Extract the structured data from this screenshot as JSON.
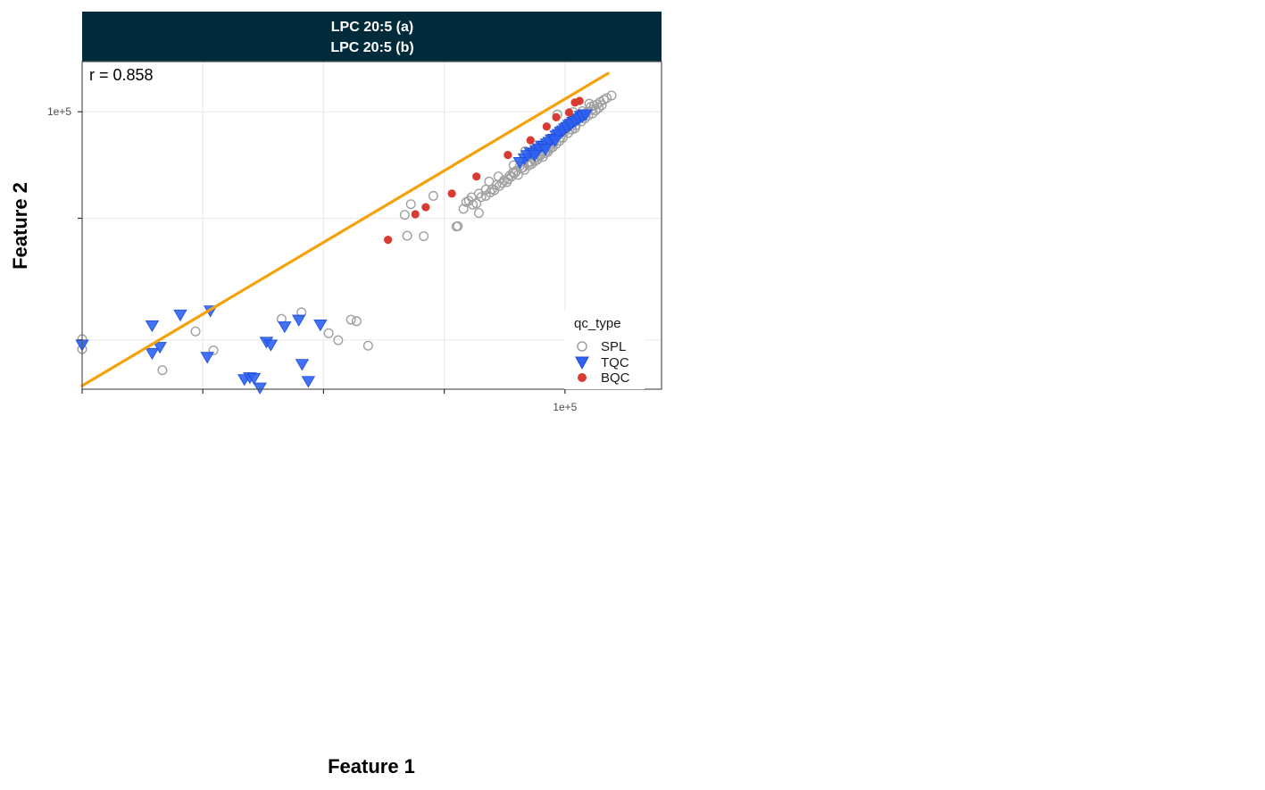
{
  "chart_data": {
    "type": "scatter",
    "panel_title": [
      "LPC 20:5 (a)",
      "LPC 20:5 (b)"
    ],
    "xlabel": "Feature 1",
    "ylabel": "Feature 2",
    "x_scale": "log10",
    "y_scale": "log10",
    "xlim": [
      1000,
      251188
    ],
    "ylim": [
      1500,
      213796
    ],
    "x_ticks": [
      {
        "value": 1000,
        "label": ""
      },
      {
        "value": 3162,
        "label": ""
      },
      {
        "value": 10000,
        "label": ""
      },
      {
        "value": 31623,
        "label": ""
      },
      {
        "value": 100000,
        "label": "1e+5"
      }
    ],
    "y_ticks": [
      {
        "value": 3162,
        "label": ""
      },
      {
        "value": 19953,
        "label": ""
      },
      {
        "value": 100000,
        "label": "1e+5"
      }
    ],
    "annotation": "r = 0.858",
    "grid": true,
    "legend": {
      "title": "qc_type",
      "position": "right-inside",
      "entries": [
        "SPL",
        "TQC",
        "BQC"
      ]
    },
    "colors": {
      "SPL": "#a0a0a0",
      "TQC": "#2f62f2",
      "BQC": "#d93a32",
      "trend": "#f5a20a",
      "strip_bg": "#012a3a",
      "grid": "#ebebeb",
      "border": "#555555"
    },
    "trend_line": {
      "x": [
        1000,
        151000
      ],
      "y": [
        1580,
        179000
      ]
    },
    "series": [
      {
        "name": "SPL",
        "marker": "open-circle",
        "points": [
          [
            1000,
            3200
          ],
          [
            1000,
            2750
          ],
          [
            2150,
            2000
          ],
          [
            2950,
            3600
          ],
          [
            6700,
            4350
          ],
          [
            8100,
            4800
          ],
          [
            3500,
            2700
          ],
          [
            11500,
            3150
          ],
          [
            10500,
            3500
          ],
          [
            13000,
            4300
          ],
          [
            15300,
            2900
          ],
          [
            13700,
            4200
          ],
          [
            26000,
            15200
          ],
          [
            22200,
            15300
          ],
          [
            23000,
            24700
          ],
          [
            35500,
            17600
          ],
          [
            28500,
            28000
          ],
          [
            21700,
            21000
          ],
          [
            36000,
            17700
          ],
          [
            44000,
            21600
          ],
          [
            41000,
            27400
          ],
          [
            47000,
            30800
          ],
          [
            53000,
            37600
          ],
          [
            48500,
            34800
          ],
          [
            61300,
            44500
          ],
          [
            68500,
            55100
          ],
          [
            75000,
            56800
          ],
          [
            82000,
            60300
          ],
          [
            97800,
            73600
          ],
          [
            110200,
            78200
          ],
          [
            93000,
            96000
          ],
          [
            108000,
            99500
          ],
          [
            118000,
            101000
          ],
          [
            126000,
            113000
          ],
          [
            130000,
            104000
          ],
          [
            149000,
            123000
          ],
          [
            156000,
            128000
          ],
          [
            40000,
            26000
          ],
          [
            44000,
            29000
          ],
          [
            50000,
            31000
          ],
          [
            52000,
            33000
          ],
          [
            58000,
            36000
          ],
          [
            61000,
            40000
          ],
          [
            65000,
            44000
          ],
          [
            70000,
            46000
          ],
          [
            74000,
            49000
          ],
          [
            78000,
            52000
          ],
          [
            84000,
            56000
          ],
          [
            88000,
            62000
          ],
          [
            91000,
            66000
          ],
          [
            94000,
            70000
          ],
          [
            101000,
            78000
          ],
          [
            104000,
            83000
          ],
          [
            112000,
            88000
          ],
          [
            116000,
            92000
          ],
          [
            38000,
            23000
          ],
          [
            43000,
            25000
          ],
          [
            47000,
            28000
          ],
          [
            55000,
            34000
          ],
          [
            59000,
            38000
          ],
          [
            63000,
            41000
          ],
          [
            67000,
            43000
          ],
          [
            72000,
            47000
          ],
          [
            76000,
            50000
          ],
          [
            80000,
            55000
          ],
          [
            86000,
            59000
          ],
          [
            90000,
            63000
          ],
          [
            96000,
            68000
          ],
          [
            100000,
            74000
          ],
          [
            106000,
            80000
          ],
          [
            109000,
            85000
          ],
          [
            114000,
            90000
          ],
          [
            120000,
            96000
          ],
          [
            124000,
            100000
          ],
          [
            128000,
            108000
          ],
          [
            132000,
            110000
          ],
          [
            136000,
            112000
          ],
          [
            140000,
            116000
          ],
          [
            145000,
            120000
          ],
          [
            39000,
            25500
          ],
          [
            41500,
            24500
          ],
          [
            45000,
            27500
          ],
          [
            49000,
            29500
          ],
          [
            51000,
            30500
          ],
          [
            53500,
            32500
          ],
          [
            56000,
            35500
          ],
          [
            57500,
            34500
          ],
          [
            60000,
            37500
          ],
          [
            62000,
            39500
          ],
          [
            64000,
            38500
          ],
          [
            66000,
            42500
          ],
          [
            68000,
            41500
          ],
          [
            71000,
            44500
          ],
          [
            73000,
            45500
          ],
          [
            75000,
            47500
          ],
          [
            77000,
            48500
          ],
          [
            79000,
            51500
          ],
          [
            81000,
            50500
          ],
          [
            83000,
            53500
          ],
          [
            85000,
            54500
          ],
          [
            87000,
            57500
          ],
          [
            89000,
            58500
          ],
          [
            92000,
            61500
          ],
          [
            95000,
            64500
          ],
          [
            98000,
            67500
          ],
          [
            103000,
            72500
          ],
          [
            107000,
            76500
          ],
          [
            111000,
            81500
          ],
          [
            117000,
            86500
          ],
          [
            121000,
            90500
          ],
          [
            125000,
            94500
          ],
          [
            130000,
            97500
          ],
          [
            134000,
            102000
          ],
          [
            138000,
            106000
          ],
          [
            142000,
            110500
          ]
        ]
      },
      {
        "name": "TQC",
        "marker": "filled-triangle-down",
        "points": [
          [
            1000,
            2950
          ],
          [
            1950,
            3950
          ],
          [
            2550,
            4650
          ],
          [
            1950,
            2600
          ],
          [
            2100,
            2850
          ],
          [
            3300,
            2450
          ],
          [
            3400,
            4950
          ],
          [
            4700,
            1750
          ],
          [
            4950,
            1800
          ],
          [
            5150,
            1780
          ],
          [
            5450,
            1540
          ],
          [
            5800,
            3080
          ],
          [
            6050,
            2950
          ],
          [
            6900,
            3890
          ],
          [
            7900,
            4300
          ],
          [
            8150,
            2200
          ],
          [
            8650,
            1700
          ],
          [
            9700,
            4000
          ],
          [
            68000,
            49500
          ],
          [
            72000,
            54000
          ],
          [
            76000,
            56000
          ],
          [
            80000,
            60000
          ],
          [
            84000,
            62000
          ],
          [
            88000,
            66000
          ],
          [
            92000,
            70000
          ],
          [
            96000,
            74000
          ],
          [
            100000,
            78000
          ],
          [
            104000,
            82000
          ],
          [
            108000,
            86000
          ],
          [
            112000,
            90000
          ],
          [
            116000,
            94000
          ],
          [
            120000,
            96000
          ],
          [
            65000,
            46800
          ],
          [
            70000,
            52000
          ],
          [
            74000,
            53500
          ],
          [
            78000,
            57500
          ],
          [
            82000,
            59500
          ],
          [
            86000,
            63500
          ],
          [
            90000,
            66500
          ],
          [
            94000,
            71500
          ],
          [
            98000,
            75500
          ],
          [
            102000,
            79500
          ],
          [
            106000,
            83500
          ],
          [
            110000,
            87500
          ],
          [
            114000,
            90500
          ],
          [
            118000,
            93500
          ],
          [
            122000,
            96500
          ],
          [
            75000,
            52000
          ],
          [
            83000,
            57000
          ],
          [
            91000,
            65000
          ]
        ]
      },
      {
        "name": "BQC",
        "marker": "filled-circle",
        "points": [
          [
            18500,
            14400
          ],
          [
            24000,
            21200
          ],
          [
            26500,
            23600
          ],
          [
            34000,
            29000
          ],
          [
            43000,
            37500
          ],
          [
            58000,
            52000
          ],
          [
            72000,
            65000
          ],
          [
            84000,
            80000
          ],
          [
            92000,
            92000
          ],
          [
            104000,
            99000
          ],
          [
            110000,
            115000
          ],
          [
            115000,
            118000
          ]
        ]
      }
    ]
  }
}
